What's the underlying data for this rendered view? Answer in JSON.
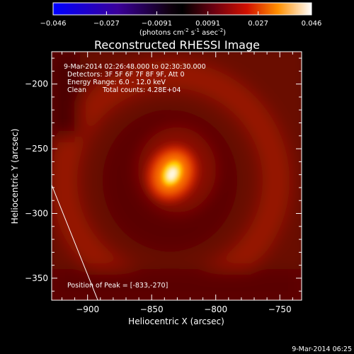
{
  "chart_data": {
    "type": "heatmap",
    "title": "Reconstructed RHESSI Image",
    "xlabel": "Heliocentric X (arcsec)",
    "ylabel": "Heliocentric Y (arcsec)",
    "xlim": [
      -928,
      -733
    ],
    "ylim": [
      -367,
      -175
    ],
    "x_ticks": [
      -900,
      -850,
      -800,
      -750
    ],
    "y_ticks": [
      -200,
      -250,
      -300,
      -350
    ],
    "colorbar": {
      "min": -0.046,
      "max": 0.046,
      "ticks": [
        "-0.046",
        "-0.027",
        "-0.0091",
        "0.0091",
        "0.027",
        "0.046"
      ],
      "label_prefix": "(photons cm",
      "label_sup1": "-2",
      "label_mid": " s",
      "label_sup2": "-1",
      "label_mid2": " asec",
      "label_sup3": "-2",
      "label_suffix": ")"
    },
    "colors": {
      "negative_low": "#0000ff",
      "zero": "#000000",
      "peak": "#ffffff",
      "mid": "#ff3000",
      "low": "#5a0000"
    },
    "peak": {
      "x": -833,
      "y": -270
    },
    "annotations": {
      "time_range": "9-Mar-2014 02:26:48.000 to 02:30:30.000",
      "detectors": "Detectors: 3F 5F 6F 7F 8F 9F, Att 0",
      "energy": "Energy Range: 6.0 - 12.0 keV",
      "clean_label": "Clean",
      "total_counts": "Total counts: 4.28E+04",
      "peak_label": "Position of Peak = [-833,-270]"
    },
    "limb_line": {
      "x": [
        -928,
        -892
      ],
      "y": [
        -278,
        -367
      ]
    }
  },
  "footer": {
    "timestamp": "9-Mar-2014 06:25"
  }
}
